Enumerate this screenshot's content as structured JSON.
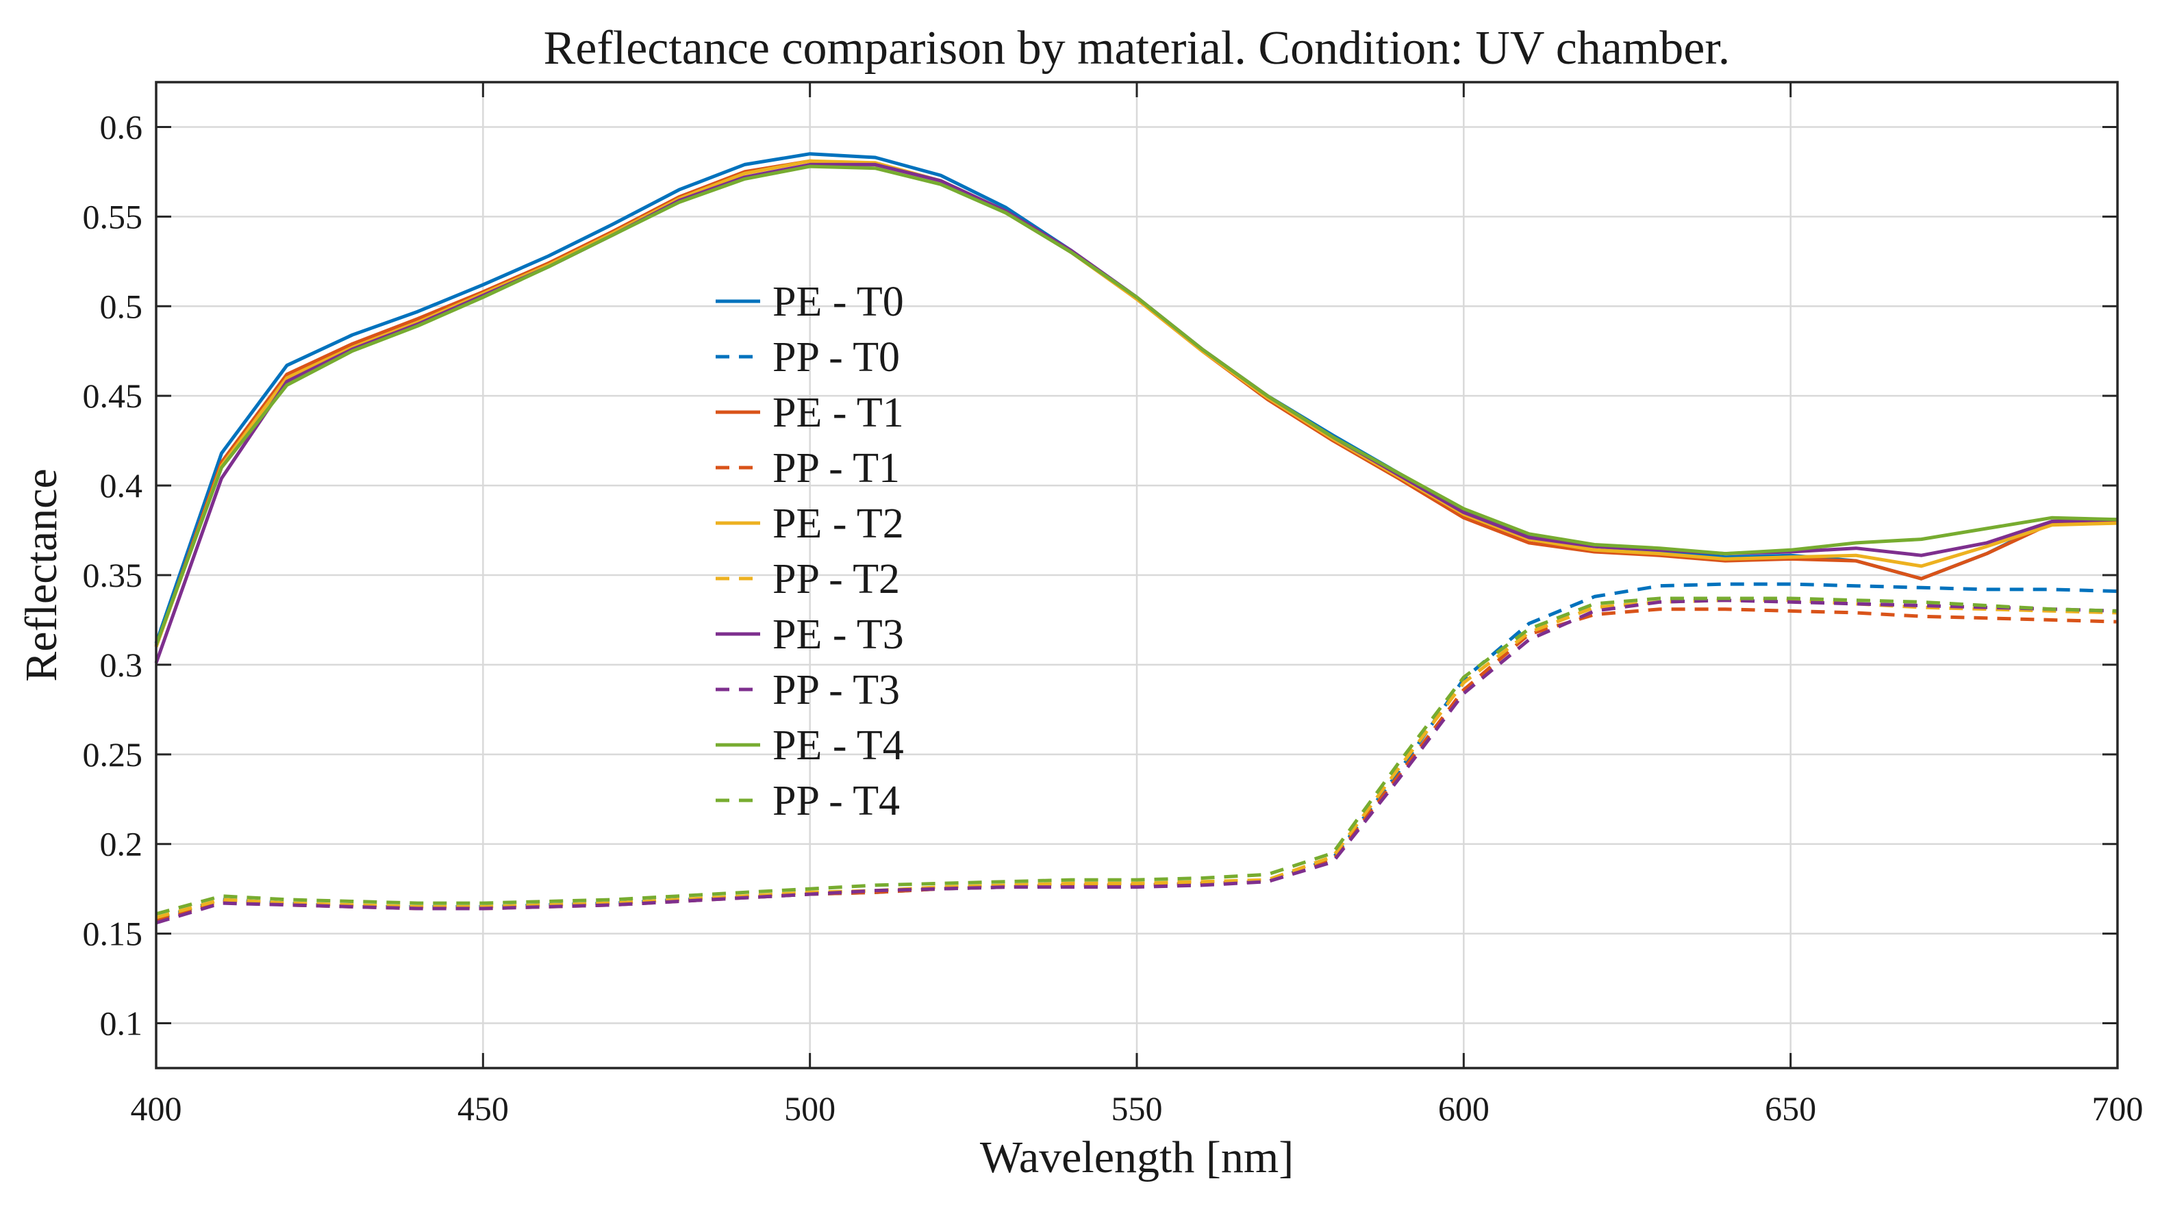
{
  "chart_data": {
    "type": "line",
    "title": "Reflectance comparison by material. Condition: UV chamber.",
    "xlabel": "Wavelength [nm]",
    "ylabel": "Reflectance",
    "xlim": [
      400,
      700
    ],
    "ylim": [
      0.075,
      0.625
    ],
    "grid": true,
    "xticks": [
      400,
      450,
      500,
      550,
      600,
      650,
      700
    ],
    "xtick_labels": [
      "400",
      "450",
      "500",
      "550",
      "600",
      "650",
      "700"
    ],
    "yticks": [
      0.1,
      0.15,
      0.2,
      0.25,
      0.3,
      0.35,
      0.4,
      0.45,
      0.5,
      0.55,
      0.6
    ],
    "ytick_labels": [
      "0.1",
      "0.15",
      "0.2",
      "0.25",
      "0.3",
      "0.35",
      "0.4",
      "0.45",
      "0.5",
      "0.55",
      "0.6"
    ],
    "legend_position": "center-left",
    "x": [
      400,
      410,
      420,
      430,
      440,
      450,
      460,
      470,
      480,
      490,
      500,
      510,
      520,
      530,
      540,
      550,
      560,
      570,
      580,
      590,
      600,
      610,
      620,
      630,
      640,
      650,
      660,
      670,
      680,
      690,
      700
    ],
    "series": [
      {
        "name": "PE - T0",
        "color": "#0072BD",
        "style": "solid",
        "values": [
          0.312,
          0.418,
          0.467,
          0.484,
          0.497,
          0.512,
          0.528,
          0.546,
          0.565,
          0.579,
          0.585,
          0.583,
          0.573,
          0.555,
          0.531,
          0.505,
          0.476,
          0.45,
          0.428,
          0.407,
          0.386,
          0.372,
          0.366,
          0.363,
          0.36,
          0.361,
          0.358,
          0.348,
          0.362,
          0.38,
          0.38
        ]
      },
      {
        "name": "PP - T0",
        "color": "#0072BD",
        "style": "dashed",
        "values": [
          0.158,
          0.169,
          0.167,
          0.165,
          0.165,
          0.165,
          0.166,
          0.167,
          0.169,
          0.17,
          0.172,
          0.173,
          0.175,
          0.176,
          0.177,
          0.177,
          0.178,
          0.179,
          0.192,
          0.24,
          0.292,
          0.323,
          0.338,
          0.344,
          0.345,
          0.345,
          0.344,
          0.343,
          0.342,
          0.342,
          0.341
        ]
      },
      {
        "name": "PE - T1",
        "color": "#D95319",
        "style": "solid",
        "values": [
          0.31,
          0.413,
          0.462,
          0.479,
          0.493,
          0.508,
          0.524,
          0.542,
          0.561,
          0.575,
          0.581,
          0.579,
          0.57,
          0.552,
          0.53,
          0.504,
          0.475,
          0.448,
          0.425,
          0.404,
          0.382,
          0.368,
          0.363,
          0.361,
          0.358,
          0.359,
          0.358,
          0.348,
          0.362,
          0.379,
          0.38
        ]
      },
      {
        "name": "PP - T1",
        "color": "#D95319",
        "style": "dashed",
        "values": [
          0.157,
          0.168,
          0.166,
          0.165,
          0.164,
          0.164,
          0.165,
          0.166,
          0.168,
          0.17,
          0.172,
          0.173,
          0.175,
          0.176,
          0.177,
          0.177,
          0.178,
          0.179,
          0.191,
          0.238,
          0.286,
          0.317,
          0.328,
          0.331,
          0.331,
          0.33,
          0.329,
          0.327,
          0.326,
          0.325,
          0.324
        ]
      },
      {
        "name": "PE - T2",
        "color": "#EDB120",
        "style": "solid",
        "values": [
          0.31,
          0.411,
          0.46,
          0.477,
          0.491,
          0.507,
          0.523,
          0.541,
          0.56,
          0.574,
          0.581,
          0.58,
          0.57,
          0.553,
          0.53,
          0.504,
          0.475,
          0.449,
          0.426,
          0.405,
          0.384,
          0.37,
          0.364,
          0.362,
          0.359,
          0.36,
          0.361,
          0.355,
          0.366,
          0.378,
          0.379
        ]
      },
      {
        "name": "PP - T2",
        "color": "#EDB120",
        "style": "dashed",
        "values": [
          0.159,
          0.169,
          0.167,
          0.166,
          0.165,
          0.165,
          0.166,
          0.167,
          0.169,
          0.171,
          0.173,
          0.174,
          0.176,
          0.177,
          0.178,
          0.178,
          0.179,
          0.18,
          0.193,
          0.242,
          0.29,
          0.318,
          0.332,
          0.335,
          0.336,
          0.336,
          0.334,
          0.332,
          0.331,
          0.33,
          0.329
        ]
      },
      {
        "name": "PE - T3",
        "color": "#7E2F8E",
        "style": "solid",
        "values": [
          0.301,
          0.404,
          0.458,
          0.476,
          0.49,
          0.506,
          0.522,
          0.54,
          0.559,
          0.572,
          0.579,
          0.579,
          0.57,
          0.553,
          0.531,
          0.505,
          0.476,
          0.45,
          0.427,
          0.406,
          0.385,
          0.371,
          0.366,
          0.364,
          0.362,
          0.363,
          0.365,
          0.361,
          0.368,
          0.38,
          0.381
        ]
      },
      {
        "name": "PP - T3",
        "color": "#7E2F8E",
        "style": "dashed",
        "values": [
          0.156,
          0.167,
          0.166,
          0.165,
          0.164,
          0.164,
          0.165,
          0.166,
          0.168,
          0.17,
          0.172,
          0.174,
          0.175,
          0.176,
          0.176,
          0.176,
          0.177,
          0.179,
          0.19,
          0.236,
          0.284,
          0.314,
          0.33,
          0.335,
          0.336,
          0.335,
          0.334,
          0.333,
          0.332,
          0.331,
          0.33
        ]
      },
      {
        "name": "PE - T4",
        "color": "#77AC30",
        "style": "solid",
        "values": [
          0.311,
          0.41,
          0.456,
          0.475,
          0.489,
          0.505,
          0.522,
          0.54,
          0.558,
          0.571,
          0.578,
          0.577,
          0.568,
          0.552,
          0.53,
          0.505,
          0.476,
          0.45,
          0.427,
          0.407,
          0.387,
          0.373,
          0.367,
          0.365,
          0.362,
          0.364,
          0.368,
          0.37,
          0.376,
          0.382,
          0.381
        ]
      },
      {
        "name": "PP - T4",
        "color": "#77AC30",
        "style": "dashed",
        "values": [
          0.161,
          0.171,
          0.169,
          0.168,
          0.167,
          0.167,
          0.168,
          0.169,
          0.171,
          0.173,
          0.175,
          0.177,
          0.178,
          0.179,
          0.18,
          0.18,
          0.181,
          0.183,
          0.195,
          0.245,
          0.293,
          0.32,
          0.334,
          0.337,
          0.337,
          0.337,
          0.336,
          0.335,
          0.333,
          0.331,
          0.33
        ]
      }
    ]
  }
}
